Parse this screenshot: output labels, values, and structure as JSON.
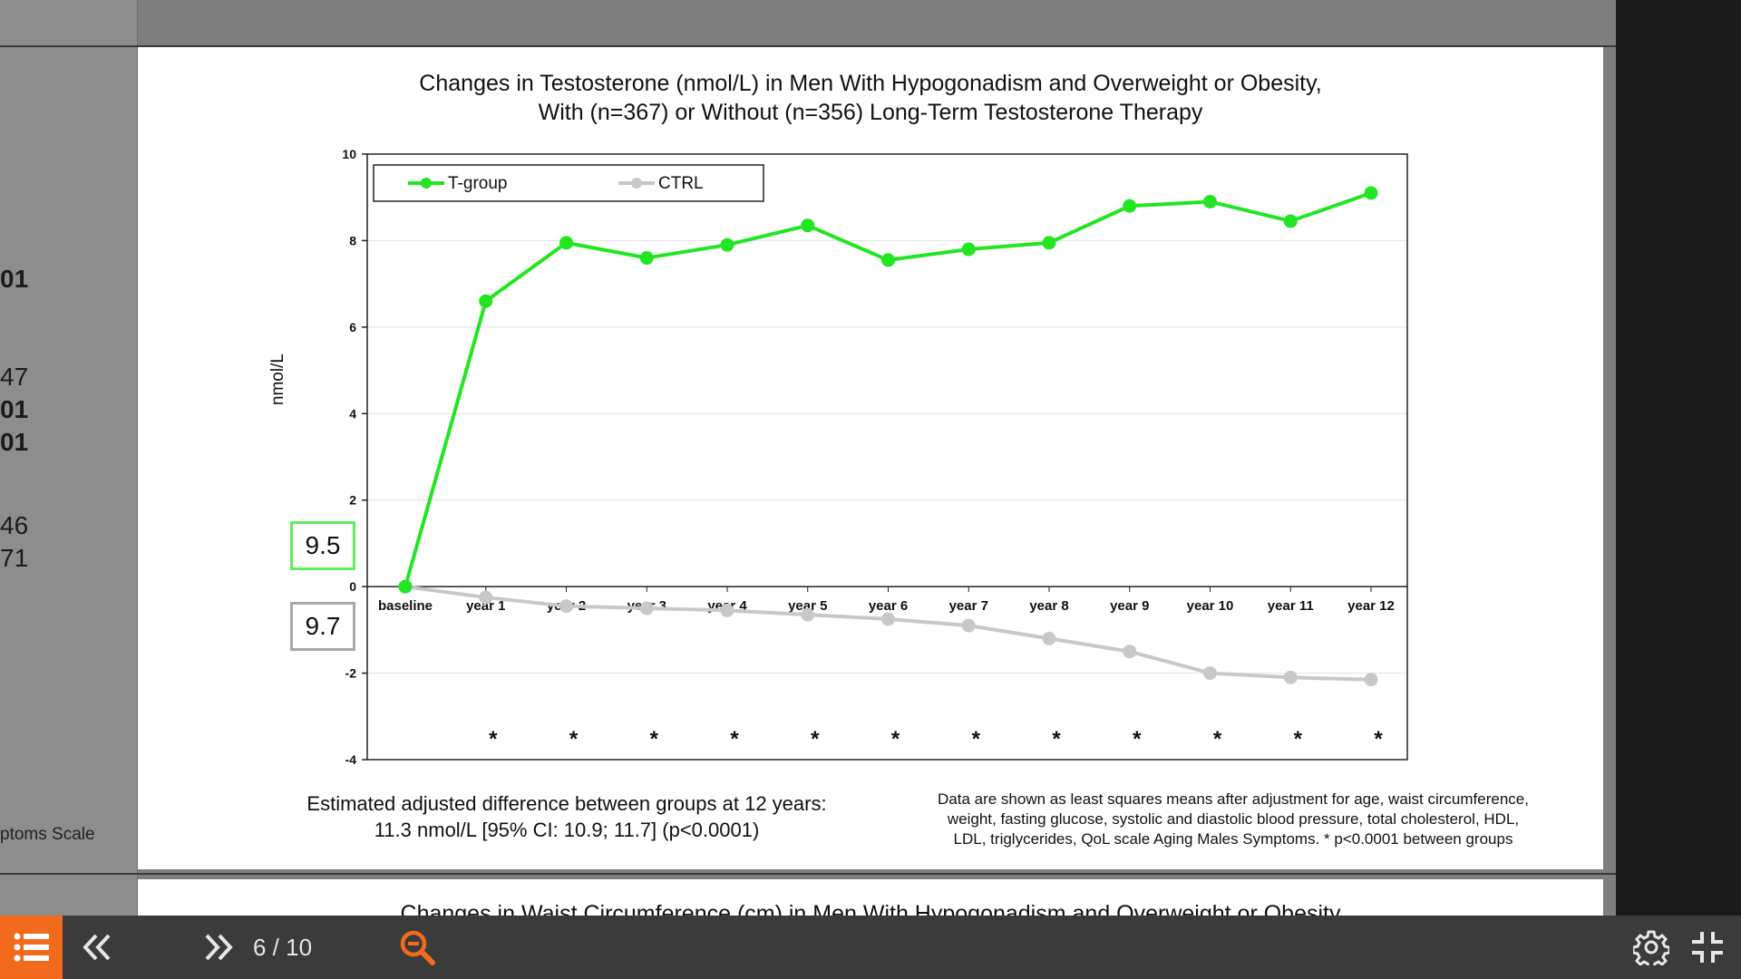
{
  "viewer": {
    "page_current": "6",
    "page_total": "10",
    "page_indicator": "6 / 10"
  },
  "side_peek": {
    "values": [
      "01",
      "47",
      "01",
      "01",
      "46",
      "71"
    ],
    "label": "ptoms Scale"
  },
  "slide": {
    "title_line1": "Changes in Testosterone (nmol/L) in Men With Hypogonadism and Overweight or Obesity,",
    "title_line2": "With (n=367) or Without (n=356) Long-Term Testosterone Therapy",
    "box_t_value": "9.5",
    "box_ctrl_value": "9.7",
    "estimate_line1": "Estimated adjusted difference between groups at 12 years:",
    "estimate_line2": "11.3 nmol/L [95% CI: 10.9; 11.7] (p<0.0001)",
    "footnote_line1": "Data are shown as least squares means after adjustment for age, waist circumference,",
    "footnote_line2": "weight, fasting glucose, systolic and diastolic blood pressure, total cholesterol, HDL,",
    "footnote_line3": "LDL, triglycerides, QoL scale Aging Males Symptoms. * p<0.0001 between groups"
  },
  "next_slide": {
    "title_partial": "Changes in Waist Circumference (cm) in Men With Hypogonadism and Overweight or Obesity"
  },
  "chart_data": {
    "type": "line",
    "title": "Changes in Testosterone (nmol/L) in Men With Hypogonadism and Overweight or Obesity, With (n=367) or Without (n=356) Long-Term Testosterone Therapy",
    "ylabel": "nmol/L",
    "xlabel": "",
    "ylim": [
      -4,
      10
    ],
    "yticks": [
      "10",
      "8",
      "6",
      "4",
      "2",
      "0",
      "-2",
      "-4"
    ],
    "categories": [
      "baseline",
      "year 1",
      "year 2",
      "year 3",
      "year 4",
      "year 5",
      "year 6",
      "year 7",
      "year 8",
      "year 9",
      "year 10",
      "year 11",
      "year 12"
    ],
    "series": [
      {
        "name": "T-group",
        "color": "#22e622",
        "values": [
          0,
          6.6,
          7.95,
          7.6,
          7.9,
          8.35,
          7.55,
          7.8,
          7.95,
          8.8,
          8.9,
          8.45,
          9.1
        ]
      },
      {
        "name": "CTRL",
        "color": "#c8c8c8",
        "values": [
          0,
          -0.25,
          -0.45,
          -0.5,
          -0.55,
          -0.65,
          -0.75,
          -0.9,
          -1.2,
          -1.5,
          -2.0,
          -2.1,
          -2.15
        ]
      }
    ],
    "significance_marker": "*",
    "significant_categories": [
      "year 1",
      "year 2",
      "year 3",
      "year 4",
      "year 5",
      "year 6",
      "year 7",
      "year 8",
      "year 9",
      "year 10",
      "year 11",
      "year 12"
    ],
    "grid": "horizontal",
    "legend_placement": "top-left"
  },
  "icons": {
    "toc": "list-icon",
    "prev": "double-chevron-left-icon",
    "next": "double-chevron-right-icon",
    "zoom": "zoom-out-icon",
    "settings": "gear-icon",
    "exit_fullscreen": "exit-fullscreen-icon"
  },
  "colors": {
    "accent": "#f26a1b",
    "toolbar": "#3b3b3b"
  }
}
